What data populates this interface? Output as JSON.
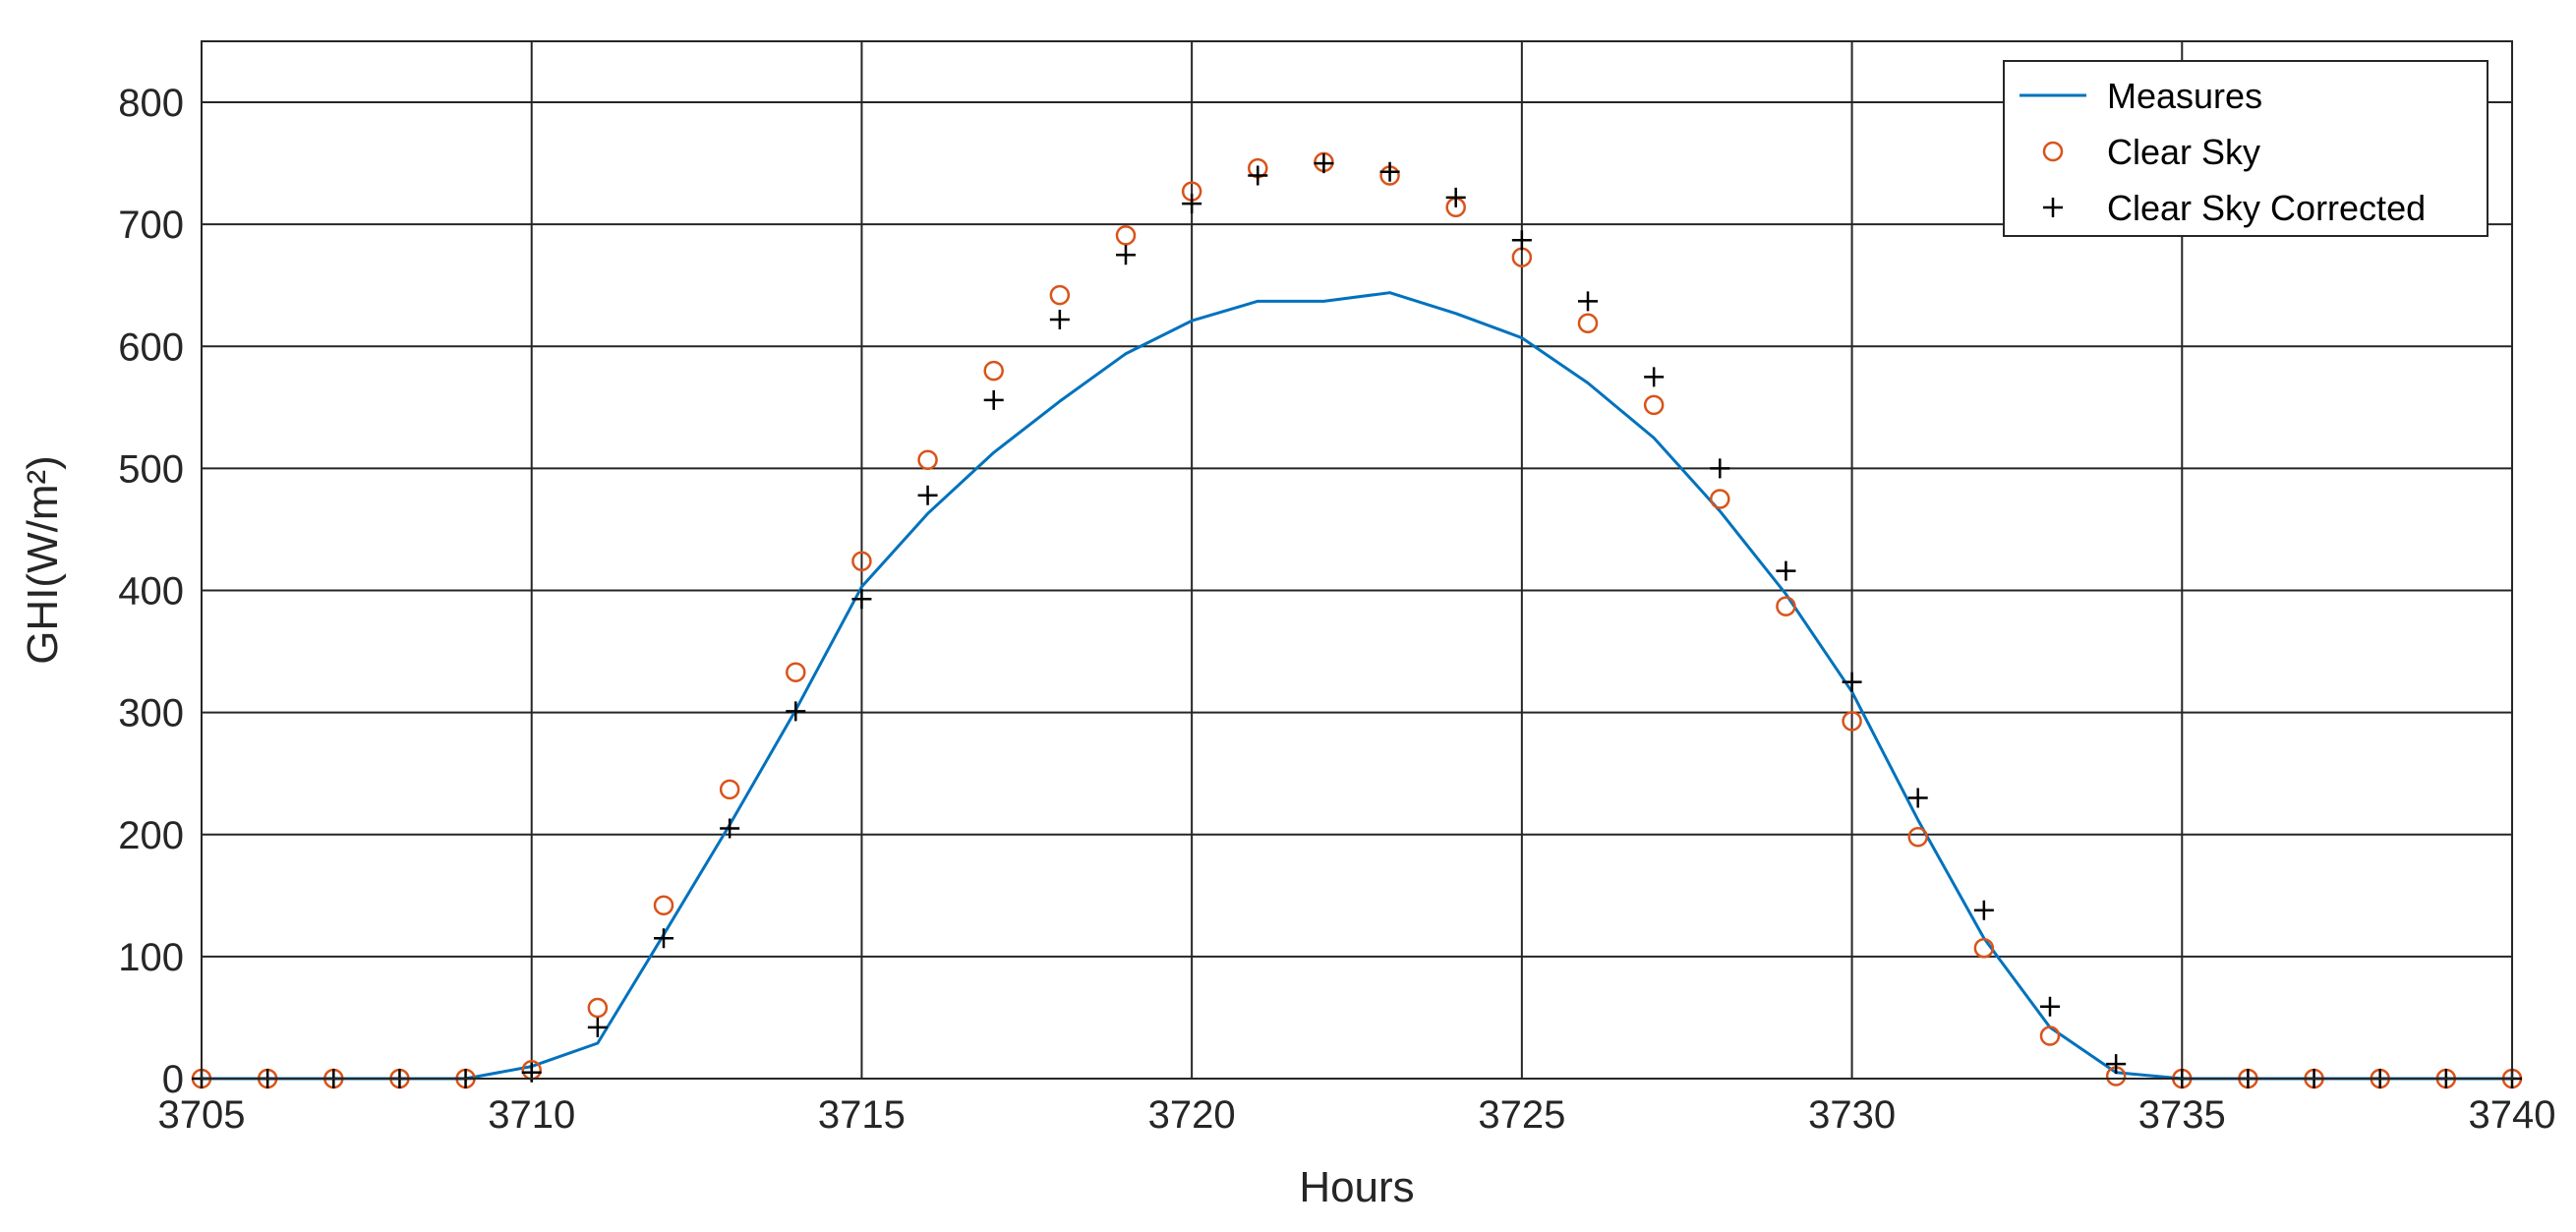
{
  "chart_data": {
    "type": "line",
    "xlabel": "Hours",
    "ylabel": "GHI(W/m²)",
    "xlim": [
      3705,
      3740
    ],
    "ylim": [
      0,
      850
    ],
    "xticks": [
      3705,
      3710,
      3715,
      3720,
      3725,
      3730,
      3735,
      3740
    ],
    "yticks": [
      0,
      100,
      200,
      300,
      400,
      500,
      600,
      700,
      800
    ],
    "grid": true,
    "legend_position": "top-right",
    "x": [
      3705,
      3706,
      3707,
      3708,
      3709,
      3710,
      3711,
      3712,
      3713,
      3714,
      3715,
      3716,
      3717,
      3718,
      3719,
      3720,
      3721,
      3722,
      3723,
      3724,
      3725,
      3726,
      3727,
      3728,
      3729,
      3730,
      3731,
      3732,
      3733,
      3734,
      3735,
      3736,
      3737,
      3738,
      3739,
      3740
    ],
    "series": [
      {
        "name": "Measures",
        "style": "line",
        "color": "#0072BD",
        "values": [
          0,
          0,
          0,
          0,
          0,
          10,
          29,
          118,
          208,
          302,
          403,
          463,
          513,
          555,
          594,
          621,
          637,
          637,
          644,
          627,
          607,
          570,
          525,
          465,
          397,
          317,
          212,
          115,
          42,
          5,
          0,
          0,
          0,
          0,
          0,
          0
        ]
      },
      {
        "name": "Clear Sky",
        "style": "circle",
        "color": "#D95319",
        "values": [
          0,
          0,
          0,
          0,
          0,
          7,
          58,
          142,
          237,
          333,
          424,
          507,
          580,
          642,
          691,
          727,
          746,
          751,
          740,
          714,
          673,
          619,
          552,
          475,
          387,
          293,
          198,
          107,
          35,
          2,
          0,
          0,
          0,
          0,
          0,
          0
        ]
      },
      {
        "name": "Clear Sky Corrected",
        "style": "plus",
        "color": "#000000",
        "values": [
          0,
          0,
          0,
          0,
          0,
          5,
          42,
          115,
          205,
          301,
          393,
          478,
          556,
          622,
          675,
          717,
          740,
          750,
          743,
          722,
          687,
          637,
          575,
          500,
          416,
          325,
          230,
          138,
          59,
          12,
          0,
          0,
          0,
          0,
          0,
          0
        ]
      }
    ]
  }
}
